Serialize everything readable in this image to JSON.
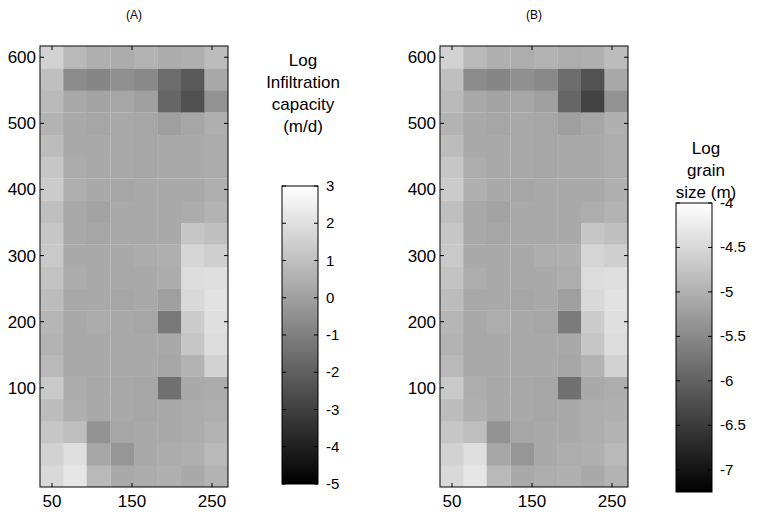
{
  "chart_data": [
    {
      "type": "heatmap",
      "title": "(A)",
      "xlim": [
        35,
        270
      ],
      "ylim": [
        -50,
        617
      ],
      "xticks": [
        50,
        150,
        250
      ],
      "yticks": [
        100,
        200,
        300,
        400,
        500,
        600
      ],
      "x": [
        50,
        79,
        108,
        138,
        167,
        197,
        226,
        255
      ],
      "y": [
        -33,
        0,
        34,
        67,
        100,
        134,
        167,
        200,
        234,
        267,
        300,
        334,
        367,
        400,
        434,
        467,
        500,
        534,
        567,
        600
      ],
      "z": [
        [
          1.8,
          2.2,
          0.8,
          0.3,
          0.4,
          0.5,
          0.3,
          0.6
        ],
        [
          1.6,
          2.0,
          0.2,
          -0.3,
          0.3,
          0.4,
          0.5,
          0.8
        ],
        [
          1.2,
          1.0,
          -0.4,
          0.2,
          0.3,
          0.3,
          0.4,
          0.6
        ],
        [
          0.9,
          0.5,
          0.3,
          0.3,
          0.2,
          0.3,
          0.4,
          0.5
        ],
        [
          1.3,
          0.4,
          0.3,
          0.3,
          0.2,
          -1.5,
          0.3,
          0.4
        ],
        [
          0.8,
          0.3,
          0.3,
          0.3,
          0.3,
          0.2,
          0.6,
          1.6
        ],
        [
          0.6,
          0.3,
          0.3,
          0.3,
          0.3,
          0.3,
          1.2,
          1.9
        ],
        [
          0.7,
          0.3,
          0.4,
          0.3,
          0.2,
          -1.2,
          1.4,
          2.0
        ],
        [
          0.9,
          0.3,
          0.3,
          0.2,
          0.3,
          0.0,
          1.8,
          2.1
        ],
        [
          1.1,
          0.4,
          0.3,
          0.3,
          0.3,
          0.4,
          1.9,
          2.0
        ],
        [
          1.3,
          0.3,
          0.3,
          0.3,
          0.4,
          0.5,
          1.7,
          1.5
        ],
        [
          1.2,
          0.3,
          0.2,
          0.3,
          0.3,
          0.3,
          1.2,
          1.0
        ],
        [
          1.0,
          0.3,
          0.1,
          0.3,
          0.3,
          0.3,
          0.4,
          0.6
        ],
        [
          1.4,
          0.5,
          0.3,
          0.2,
          0.3,
          0.3,
          0.3,
          0.5
        ],
        [
          1.2,
          0.4,
          0.3,
          0.3,
          0.2,
          0.3,
          0.3,
          0.4
        ],
        [
          0.9,
          0.3,
          0.3,
          0.3,
          0.2,
          0.3,
          0.3,
          0.4
        ],
        [
          0.6,
          0.3,
          0.2,
          0.3,
          0.2,
          0.0,
          0.2,
          0.5
        ],
        [
          0.8,
          0.3,
          0.1,
          0.2,
          0.0,
          -1.8,
          -2.5,
          -0.4
        ],
        [
          1.0,
          -0.6,
          -0.8,
          -0.5,
          -0.7,
          -1.6,
          -2.2,
          0.3
        ],
        [
          1.6,
          0.8,
          0.5,
          0.4,
          0.6,
          0.4,
          0.5,
          0.9
        ]
      ],
      "colorbar": {
        "label": [
          "Log",
          "Infiltration",
          "capacity",
          "(m/d)"
        ],
        "range": [
          -5,
          3
        ],
        "ticks": [
          3,
          2,
          1,
          0,
          -1,
          -2,
          -3,
          -4,
          -5
        ]
      }
    },
    {
      "type": "heatmap",
      "title": "(B)",
      "xlim": [
        35,
        270
      ],
      "ylim": [
        -50,
        617
      ],
      "xticks": [
        50,
        150,
        250
      ],
      "yticks": [
        100,
        200,
        300,
        400,
        500,
        600
      ],
      "x": [
        50,
        79,
        108,
        138,
        167,
        197,
        226,
        255
      ],
      "y": [
        -33,
        0,
        34,
        67,
        100,
        134,
        167,
        200,
        234,
        267,
        300,
        334,
        367,
        400,
        434,
        467,
        500,
        534,
        567,
        600
      ],
      "z": [
        [
          -4.49,
          -4.32,
          -4.89,
          -5.09,
          -5.05,
          -5.01,
          -5.09,
          -4.97
        ],
        [
          -4.57,
          -4.41,
          -5.13,
          -5.34,
          -5.09,
          -5.05,
          -5.01,
          -4.89
        ],
        [
          -4.73,
          -4.81,
          -5.38,
          -5.13,
          -5.09,
          -5.09,
          -5.05,
          -4.97
        ],
        [
          -4.85,
          -5.01,
          -5.09,
          -5.09,
          -5.13,
          -5.09,
          -5.05,
          -5.01
        ],
        [
          -4.69,
          -5.05,
          -5.09,
          -5.09,
          -5.13,
          -5.82,
          -5.09,
          -5.05
        ],
        [
          -4.89,
          -5.09,
          -5.09,
          -5.09,
          -5.09,
          -5.13,
          -4.97,
          -4.57
        ],
        [
          -4.97,
          -5.09,
          -5.09,
          -5.09,
          -5.09,
          -5.09,
          -4.73,
          -4.45
        ],
        [
          -4.93,
          -5.09,
          -5.05,
          -5.09,
          -5.13,
          -5.7,
          -4.65,
          -4.41
        ],
        [
          -4.85,
          -5.09,
          -5.09,
          -5.13,
          -5.09,
          -5.22,
          -4.49,
          -4.37
        ],
        [
          -4.77,
          -5.05,
          -5.09,
          -5.09,
          -5.09,
          -5.05,
          -4.45,
          -4.41
        ],
        [
          -4.69,
          -5.09,
          -5.09,
          -5.09,
          -5.05,
          -5.01,
          -4.53,
          -4.61
        ],
        [
          -4.73,
          -5.09,
          -5.13,
          -5.09,
          -5.09,
          -5.09,
          -4.73,
          -4.81
        ],
        [
          -4.81,
          -5.09,
          -5.17,
          -5.09,
          -5.09,
          -5.09,
          -5.05,
          -4.97
        ],
        [
          -4.65,
          -5.01,
          -5.09,
          -5.13,
          -5.09,
          -5.09,
          -5.09,
          -5.01
        ],
        [
          -4.73,
          -5.05,
          -5.09,
          -5.09,
          -5.13,
          -5.09,
          -5.09,
          -5.05
        ],
        [
          -4.85,
          -5.09,
          -5.09,
          -5.09,
          -5.13,
          -5.09,
          -5.09,
          -5.05
        ],
        [
          -4.97,
          -5.09,
          -5.13,
          -5.09,
          -5.13,
          -5.22,
          -5.13,
          -5.01
        ],
        [
          -4.89,
          -5.09,
          -5.17,
          -5.13,
          -5.22,
          -5.95,
          -6.4,
          -5.38
        ],
        [
          -4.81,
          -5.46,
          -5.54,
          -5.42,
          -5.5,
          -5.86,
          -6.2,
          -5.09
        ],
        [
          -4.57,
          -4.89,
          -5.01,
          -5.05,
          -4.97,
          -5.05,
          -5.01,
          -4.85
        ]
      ],
      "colorbar": {
        "label": [
          "Log",
          "grain",
          "size (m)"
        ],
        "range": [
          -7.25,
          -4
        ],
        "ticks": [
          -4,
          -4.5,
          -5,
          -5.5,
          -6,
          -6.5,
          -7
        ]
      }
    }
  ]
}
